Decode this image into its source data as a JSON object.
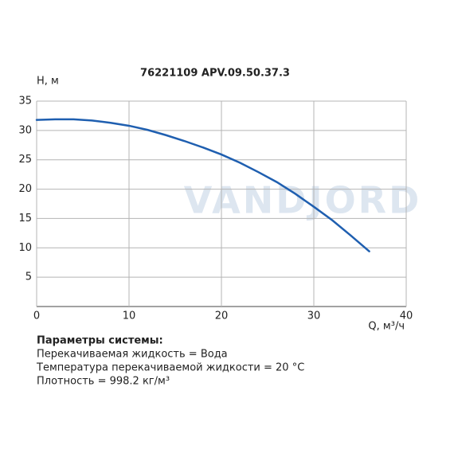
{
  "chart_data": {
    "type": "line",
    "title": "76221109 APV.09.50.37.3",
    "y_label": "H, м",
    "x_label": "Q, м³/ч",
    "watermark": "VANDJORD",
    "x": [
      0,
      2,
      4,
      6,
      8,
      10,
      12,
      14,
      16,
      18,
      20,
      22,
      24,
      26,
      28,
      30,
      32,
      34,
      36
    ],
    "series": [
      {
        "color": "#1f5fb0",
        "values": [
          31.8,
          31.9,
          31.9,
          31.7,
          31.3,
          30.8,
          30.1,
          29.2,
          28.2,
          27.1,
          25.9,
          24.5,
          22.9,
          21.2,
          19.2,
          17.0,
          14.7,
          12.1,
          9.4
        ]
      }
    ],
    "xlim": [
      0,
      40
    ],
    "xticks": [
      0,
      10,
      20,
      30,
      40
    ],
    "ylim": [
      0,
      35
    ],
    "yticks": [
      5,
      10,
      15,
      20,
      25,
      30,
      35
    ],
    "grid": true,
    "notes": {
      "title": "Параметры системы:",
      "lines": [
        "Перекачиваемая жидкость = Вода",
        "Температура перекачиваемой жидкости = 20 °C",
        "Плотность = 998.2 кг/м³"
      ]
    }
  }
}
